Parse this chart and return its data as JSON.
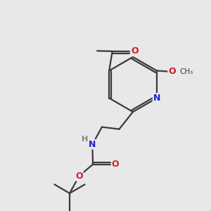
{
  "bg_color": "#e8e8e8",
  "bond_color": "#3a3a3a",
  "N_color": "#2020cc",
  "O_color": "#cc2020",
  "H_color": "#808080",
  "line_width": 1.6,
  "figsize": [
    3.0,
    3.0
  ],
  "dpi": 100,
  "xlim": [
    0,
    10
  ],
  "ylim": [
    0,
    10
  ]
}
